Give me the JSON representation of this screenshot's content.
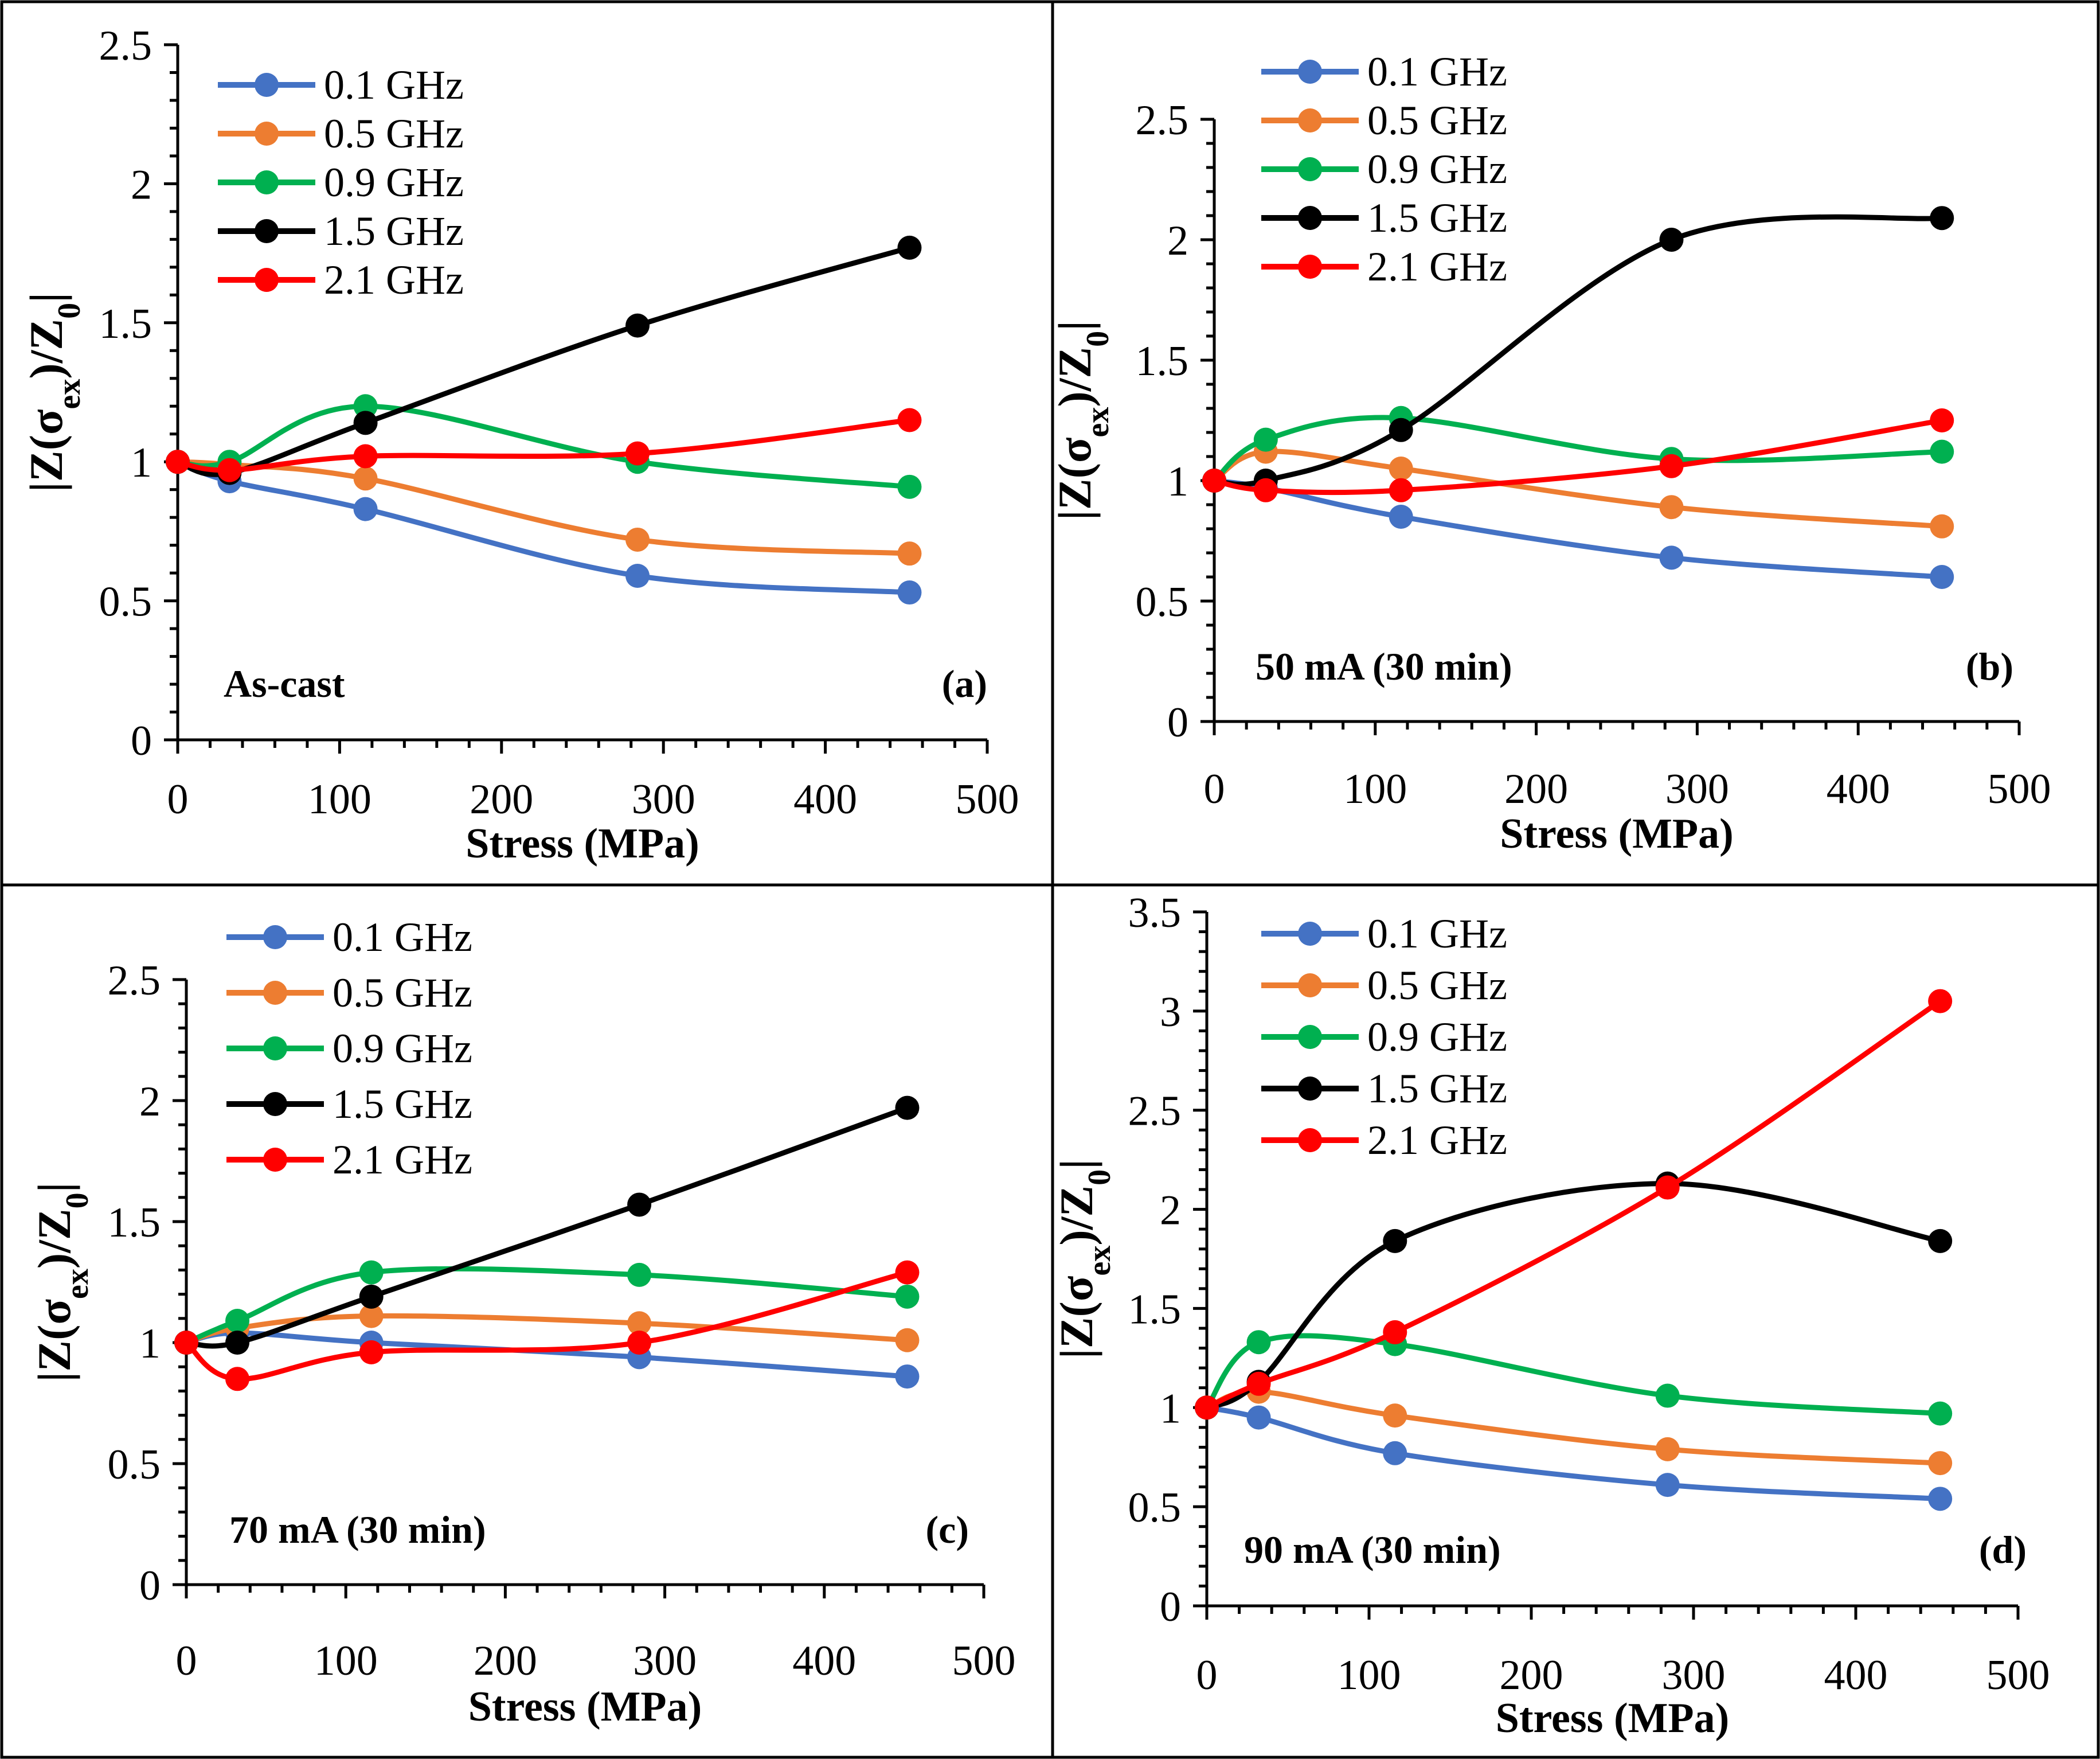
{
  "figure_title": "",
  "chart_data": [
    {
      "panel": "a",
      "type": "line",
      "title": "",
      "annotation": "As-cast",
      "panel_label": "(a)",
      "xlabel": "Stress (MPa)",
      "ylabel": {
        "prefix": "|Z(σ",
        "sub": "ex",
        "mid": ")/Z",
        "sub2": "0",
        "suffix": "|"
      },
      "xlim": [
        0,
        500
      ],
      "ylim": [
        0,
        2.5
      ],
      "xticks": [
        0,
        100,
        200,
        300,
        400,
        500
      ],
      "yticks": [
        0,
        0.5,
        1,
        1.5,
        2,
        2.5
      ],
      "ytick_labels": [
        "0",
        "0.5",
        "1",
        "1.5",
        "2",
        "2.5"
      ],
      "x": [
        0,
        32,
        116,
        284,
        452
      ],
      "series": [
        {
          "name": "0.1 GHz",
          "color": "#4472C4",
          "values": [
            1.0,
            0.93,
            0.83,
            0.59,
            0.53
          ]
        },
        {
          "name": "0.5 GHz",
          "color": "#ED7D31",
          "values": [
            1.0,
            0.99,
            0.94,
            0.72,
            0.67
          ]
        },
        {
          "name": "0.9 GHz",
          "color": "#00B050",
          "values": [
            1.0,
            1.0,
            1.2,
            1.0,
            0.91
          ]
        },
        {
          "name": "1.5 GHz",
          "color": "#000000",
          "values": [
            1.0,
            0.96,
            1.14,
            1.49,
            1.77
          ]
        },
        {
          "name": "2.1 GHz",
          "color": "#FF0000",
          "values": [
            1.0,
            0.97,
            1.02,
            1.03,
            1.15
          ]
        }
      ]
    },
    {
      "panel": "b",
      "type": "line",
      "title": "",
      "annotation": "50 mA (30 min)",
      "panel_label": "(b)",
      "xlabel": "Stress (MPa)",
      "ylabel": {
        "prefix": "|Z(σ",
        "sub": "ex",
        "mid": ")/Z",
        "sub2": "0",
        "suffix": "|"
      },
      "xlim": [
        0,
        500
      ],
      "ylim": [
        0,
        2.5
      ],
      "xticks": [
        0,
        100,
        200,
        300,
        400,
        500
      ],
      "yticks": [
        0,
        0.5,
        1,
        1.5,
        2,
        2.5
      ],
      "ytick_labels": [
        "0",
        "0.5",
        "1",
        "1.5",
        "2",
        "2.5"
      ],
      "x": [
        0,
        32,
        116,
        284,
        452
      ],
      "series": [
        {
          "name": "0.1 GHz",
          "color": "#4472C4",
          "values": [
            1.0,
            0.97,
            0.85,
            0.68,
            0.6
          ]
        },
        {
          "name": "0.5 GHz",
          "color": "#ED7D31",
          "values": [
            1.0,
            1.12,
            1.05,
            0.89,
            0.81
          ]
        },
        {
          "name": "0.9 GHz",
          "color": "#00B050",
          "values": [
            1.0,
            1.17,
            1.26,
            1.09,
            1.12
          ]
        },
        {
          "name": "1.5 GHz",
          "color": "#000000",
          "values": [
            1.0,
            1.0,
            1.21,
            2.0,
            2.09
          ]
        },
        {
          "name": "2.1 GHz",
          "color": "#FF0000",
          "values": [
            1.0,
            0.96,
            0.96,
            1.06,
            1.25
          ]
        }
      ]
    },
    {
      "panel": "c",
      "type": "line",
      "title": "",
      "annotation": "70 mA (30 min)",
      "panel_label": "(c)",
      "xlabel": "Stress (MPa)",
      "ylabel": {
        "prefix": "|Z(σ",
        "sub": "ex",
        "mid": ")/Z",
        "sub2": "0",
        "suffix": "|"
      },
      "xlim": [
        0,
        500
      ],
      "ylim": [
        0,
        2.5
      ],
      "xticks": [
        0,
        100,
        200,
        300,
        400,
        500
      ],
      "yticks": [
        0,
        0.5,
        1,
        1.5,
        2,
        2.5
      ],
      "ytick_labels": [
        "0",
        "0.5",
        "1",
        "1.5",
        "2",
        "2.5"
      ],
      "x": [
        0,
        32,
        116,
        284,
        452
      ],
      "series": [
        {
          "name": "0.1 GHz",
          "color": "#4472C4",
          "values": [
            1.0,
            1.04,
            1.0,
            0.94,
            0.86
          ]
        },
        {
          "name": "0.5 GHz",
          "color": "#ED7D31",
          "values": [
            1.0,
            1.06,
            1.11,
            1.08,
            1.01
          ]
        },
        {
          "name": "0.9 GHz",
          "color": "#00B050",
          "values": [
            1.0,
            1.09,
            1.29,
            1.28,
            1.19
          ]
        },
        {
          "name": "1.5 GHz",
          "color": "#000000",
          "values": [
            1.0,
            1.0,
            1.19,
            1.57,
            1.97
          ]
        },
        {
          "name": "2.1 GHz",
          "color": "#FF0000",
          "values": [
            1.0,
            0.85,
            0.96,
            1.0,
            1.29
          ]
        }
      ]
    },
    {
      "panel": "d",
      "type": "line",
      "title": "",
      "annotation": "90 mA (30 min)",
      "panel_label": "(d)",
      "xlabel": "Stress (MPa)",
      "ylabel": {
        "prefix": "|Z(σ",
        "sub": "ex",
        "mid": ")/Z",
        "sub2": "0",
        "suffix": "|"
      },
      "xlim": [
        0,
        500
      ],
      "ylim": [
        0,
        3.5
      ],
      "xticks": [
        0,
        100,
        200,
        300,
        400,
        500
      ],
      "yticks": [
        0,
        0.5,
        1,
        1.5,
        2,
        2.5,
        3,
        3.5
      ],
      "ytick_labels": [
        "0",
        "0.5",
        "1",
        "1.5",
        "2",
        "2.5",
        "3",
        "3.5"
      ],
      "x": [
        0,
        32,
        116,
        284,
        452
      ],
      "series": [
        {
          "name": "0.1 GHz",
          "color": "#4472C4",
          "values": [
            1.0,
            0.95,
            0.77,
            0.61,
            0.54
          ]
        },
        {
          "name": "0.5 GHz",
          "color": "#ED7D31",
          "values": [
            1.0,
            1.08,
            0.96,
            0.79,
            0.72
          ]
        },
        {
          "name": "0.9 GHz",
          "color": "#00B050",
          "values": [
            1.0,
            1.33,
            1.32,
            1.06,
            0.97
          ]
        },
        {
          "name": "1.5 GHz",
          "color": "#000000",
          "values": [
            1.0,
            1.13,
            1.84,
            2.13,
            1.84
          ]
        },
        {
          "name": "2.1 GHz",
          "color": "#FF0000",
          "values": [
            1.0,
            1.12,
            1.38,
            2.11,
            3.05
          ]
        }
      ]
    }
  ]
}
